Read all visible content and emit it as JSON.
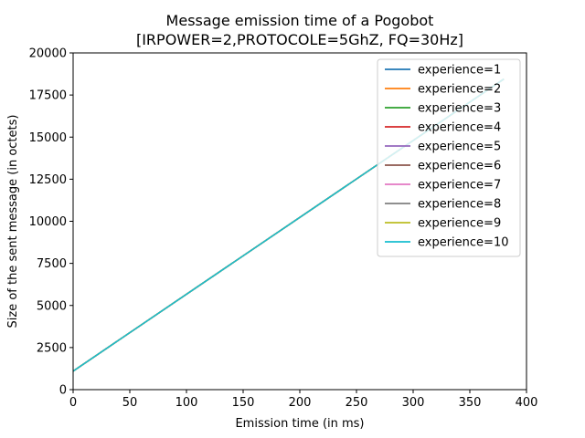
{
  "chart_data": {
    "type": "line",
    "title": [
      "Message emission time of a Pogobot",
      "[IRPOWER=2,PROTOCOLE=5GhZ, FQ=30Hz]"
    ],
    "xlabel": "Emission time (in ms)",
    "ylabel": "Size of the sent message (in octets)",
    "xlim": [
      0,
      400
    ],
    "ylim": [
      0,
      20000
    ],
    "xticks": [
      0,
      50,
      100,
      150,
      200,
      250,
      300,
      350,
      400
    ],
    "yticks": [
      0,
      2500,
      5000,
      7500,
      10000,
      12500,
      15000,
      17500,
      20000
    ],
    "grid": false,
    "legend_position": "top-right",
    "series": [
      {
        "name": "experience=1",
        "color": "#1f77b4",
        "x": [
          0,
          380
        ],
        "y": [
          1100,
          18450
        ]
      },
      {
        "name": "experience=2",
        "color": "#ff7f0e",
        "x": [
          0,
          380
        ],
        "y": [
          1100,
          18450
        ]
      },
      {
        "name": "experience=3",
        "color": "#2ca02c",
        "x": [
          0,
          380
        ],
        "y": [
          1100,
          18450
        ]
      },
      {
        "name": "experience=4",
        "color": "#d62728",
        "x": [
          0,
          380
        ],
        "y": [
          1100,
          18450
        ]
      },
      {
        "name": "experience=5",
        "color": "#9467bd",
        "x": [
          0,
          380
        ],
        "y": [
          1100,
          18450
        ]
      },
      {
        "name": "experience=6",
        "color": "#8c564b",
        "x": [
          0,
          380
        ],
        "y": [
          1100,
          18450
        ]
      },
      {
        "name": "experience=7",
        "color": "#e377c2",
        "x": [
          0,
          380
        ],
        "y": [
          1100,
          18450
        ]
      },
      {
        "name": "experience=8",
        "color": "#7f7f7f",
        "x": [
          0,
          380
        ],
        "y": [
          1100,
          18450
        ]
      },
      {
        "name": "experience=9",
        "color": "#bcbd22",
        "x": [
          0,
          380
        ],
        "y": [
          1100,
          18450
        ]
      },
      {
        "name": "experience=10",
        "color": "#17becf",
        "x": [
          0,
          380
        ],
        "y": [
          1100,
          18450
        ]
      }
    ]
  }
}
